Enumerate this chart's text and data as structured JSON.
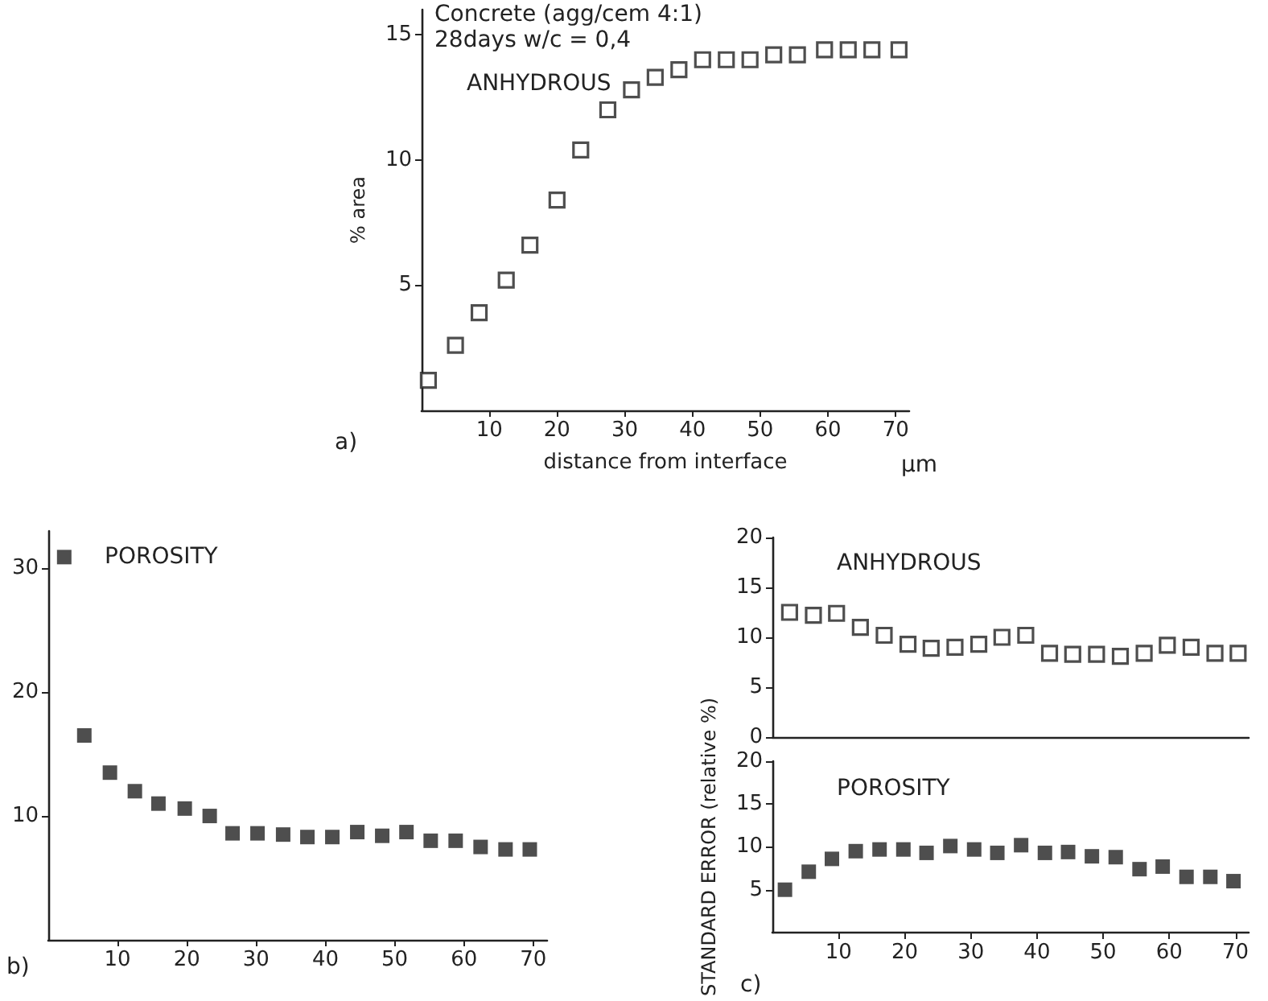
{
  "chart_data": [
    {
      "type": "scatter",
      "title": "ANHYDROUS",
      "xlabel": "distance from interface",
      "ylabel": "% area",
      "annotations": [
        "Concrete (agg/cem 4:1)",
        "28days w/c = 0,4",
        "a)",
        "μm"
      ],
      "x": [
        1,
        5,
        8.5,
        12.5,
        16,
        20,
        23.5,
        27.5,
        31,
        34.5,
        38,
        41.5,
        45,
        48.5,
        52,
        55.5,
        59.5,
        63,
        66.5,
        70.5
      ],
      "series": [
        {
          "color": "#222222",
          "values": [
            1.2,
            2.6,
            3.9,
            5.2,
            6.6,
            8.4,
            10.4,
            12.0,
            12.8,
            13.3,
            13.6,
            14.0,
            14.0,
            14.0,
            14.2,
            14.2,
            14.4,
            14.4,
            14.4,
            14.4
          ]
        }
      ],
      "xlim": [
        0,
        72
      ],
      "xticks": [
        10,
        20,
        30,
        40,
        50,
        60,
        70
      ],
      "ylim": [
        0,
        16
      ],
      "yticks": [
        5,
        10,
        15
      ],
      "marker": "square",
      "grid": false
    },
    {
      "type": "scatter",
      "title": "POROSITY",
      "annotations": [
        "b)"
      ],
      "x": [
        2.3,
        5.2,
        8.9,
        12.5,
        15.9,
        19.7,
        23.3,
        26.6,
        30.2,
        33.9,
        37.4,
        41,
        44.6,
        48.2,
        51.7,
        55.2,
        58.8,
        62.4,
        66,
        69.5
      ],
      "series": [
        {
          "color": "#222222",
          "values": [
            30.9,
            16.5,
            13.5,
            12.0,
            11.0,
            10.6,
            10.0,
            8.6,
            8.6,
            8.5,
            8.3,
            8.3,
            8.7,
            8.4,
            8.7,
            8.0,
            8.0,
            7.5,
            7.3,
            7.3
          ]
        }
      ],
      "xlim": [
        0,
        72
      ],
      "xticks": [
        10,
        20,
        30,
        40,
        50,
        60,
        70
      ],
      "ylim": [
        0,
        33
      ],
      "yticks": [
        10,
        20,
        30
      ],
      "marker": "square",
      "grid": false
    },
    {
      "type": "scatter",
      "title": "ANHYDROUS",
      "x": [
        2.6,
        6.2,
        9.7,
        13.3,
        16.9,
        20.5,
        24,
        27.6,
        31.2,
        34.7,
        38.3,
        41.9,
        45.4,
        49,
        52.6,
        56.2,
        59.7,
        63.3,
        66.9,
        70.4
      ],
      "series": [
        {
          "color": "#222222",
          "values": [
            12.5,
            12.2,
            12.4,
            11.0,
            10.2,
            9.3,
            8.9,
            9.0,
            9.3,
            10.0,
            10.2,
            8.4,
            8.3,
            8.3,
            8.1,
            8.4,
            9.2,
            9.0,
            8.4,
            8.4
          ]
        }
      ],
      "xlim": [
        0,
        72
      ],
      "ylim": [
        0,
        20
      ],
      "yticks": [
        0,
        5,
        10,
        15,
        20
      ],
      "tick_labels": "y",
      "marker": "square",
      "grid": false
    },
    {
      "type": "scatter",
      "title": "POROSITY",
      "ylabel": "STANDARD ERROR (relative %)",
      "annotations": [
        "c)"
      ],
      "x": [
        1.9,
        5.5,
        9,
        12.6,
        16.2,
        19.8,
        23.3,
        26.9,
        30.5,
        34,
        37.6,
        41.2,
        44.7,
        48.3,
        51.9,
        55.5,
        59,
        62.6,
        66.2,
        69.7
      ],
      "series": [
        {
          "color": "#222222",
          "values": [
            5.0,
            7.1,
            8.6,
            9.5,
            9.7,
            9.7,
            9.3,
            10.1,
            9.7,
            9.3,
            10.2,
            9.3,
            9.4,
            8.9,
            8.8,
            7.4,
            7.7,
            6.5,
            6.5,
            6.0
          ]
        }
      ],
      "xlim": [
        0,
        72
      ],
      "xticks": [
        10,
        20,
        30,
        40,
        50,
        60,
        70
      ],
      "ylim": [
        0,
        20
      ],
      "yticks": [
        5,
        10,
        15,
        20
      ],
      "marker": "square",
      "grid": false
    }
  ]
}
